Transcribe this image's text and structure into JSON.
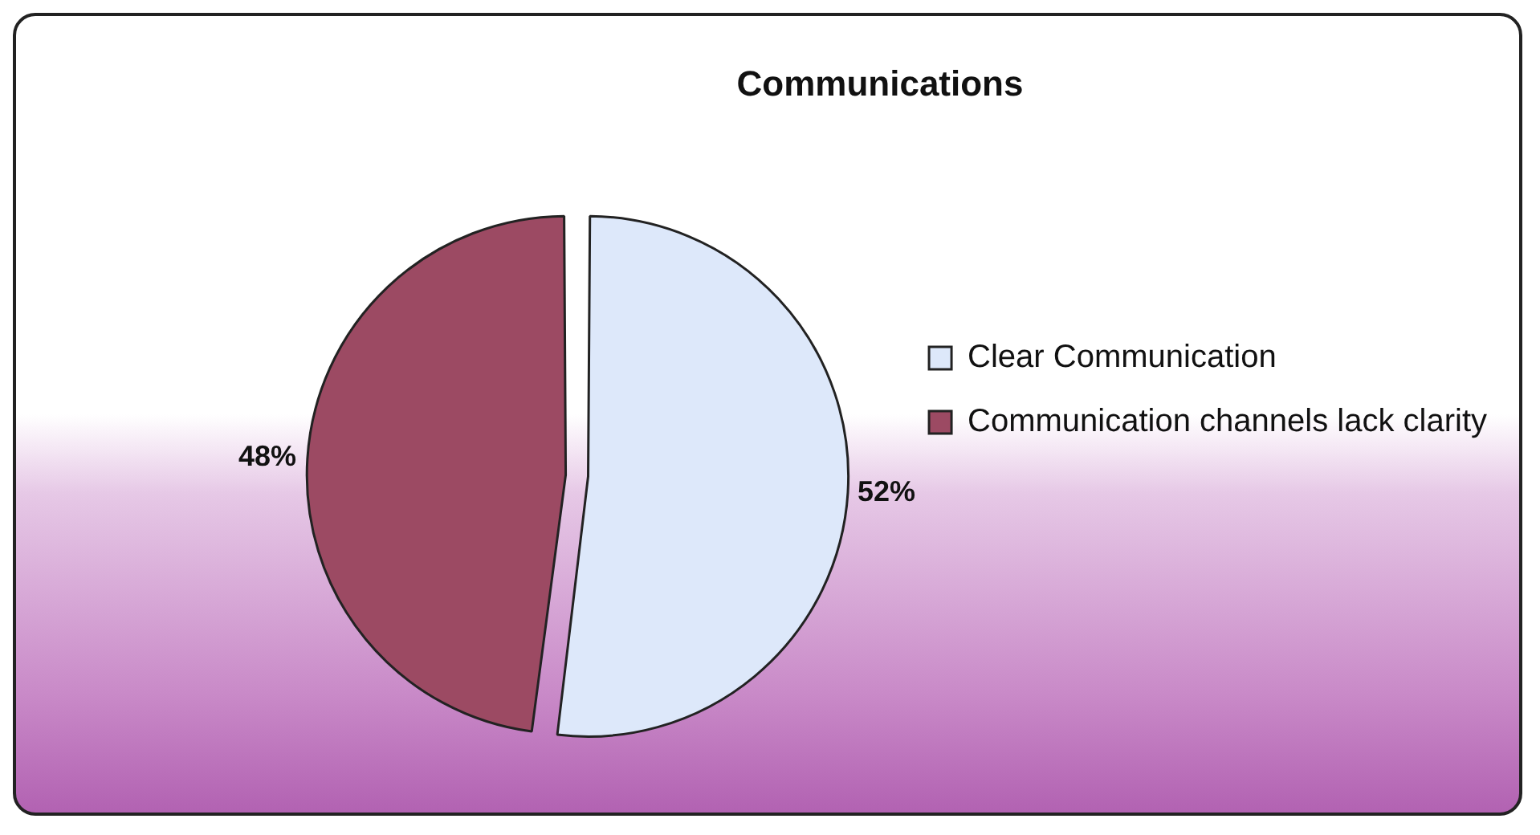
{
  "chart_data": {
    "type": "pie",
    "title": "Communications",
    "categories": [
      "Clear Communication",
      "Communication channels lack clarity"
    ],
    "values": [
      52,
      48
    ],
    "colors": [
      "#dde8fa",
      "#9c4a63"
    ],
    "value_labels": [
      "52%",
      "48%"
    ],
    "legend": "right"
  }
}
